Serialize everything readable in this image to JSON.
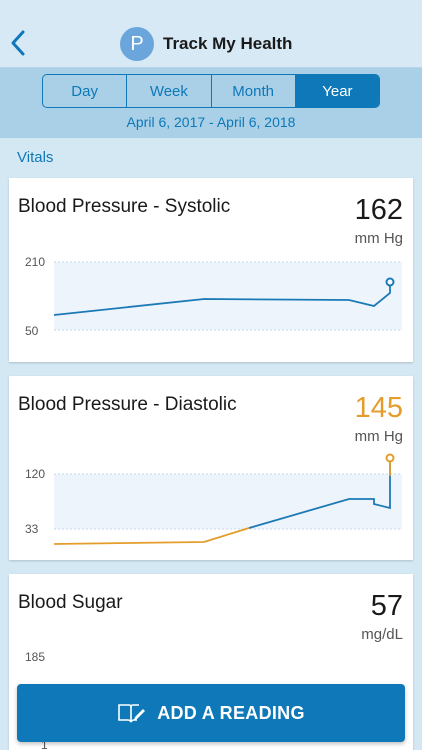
{
  "header": {
    "title": "Track My Health",
    "avatar_letter": "P"
  },
  "period_tabs": [
    {
      "label": "Day",
      "active": false
    },
    {
      "label": "Week",
      "active": false
    },
    {
      "label": "Month",
      "active": false
    },
    {
      "label": "Year",
      "active": true
    }
  ],
  "date_range": "April 6, 2017 - April 6, 2018",
  "section": {
    "title": "Vitals"
  },
  "cards": {
    "systolic": {
      "title": "Blood Pressure - Systolic",
      "value": "162",
      "unit": "mm Hg",
      "y_max": "210",
      "y_min": "50"
    },
    "diastolic": {
      "title": "Blood Pressure - Diastolic",
      "value": "145",
      "unit": "mm Hg",
      "y_max": "120",
      "y_min": "33"
    },
    "sugar": {
      "title": "Blood Sugar",
      "value": "57",
      "unit": "mg/dL",
      "y_max": "185",
      "y_min": "1"
    }
  },
  "add_button": {
    "label": "ADD A READING"
  },
  "colors": {
    "accent": "#0e78b8",
    "warning": "#e49d2a",
    "range_band": "#eef4fc"
  }
}
